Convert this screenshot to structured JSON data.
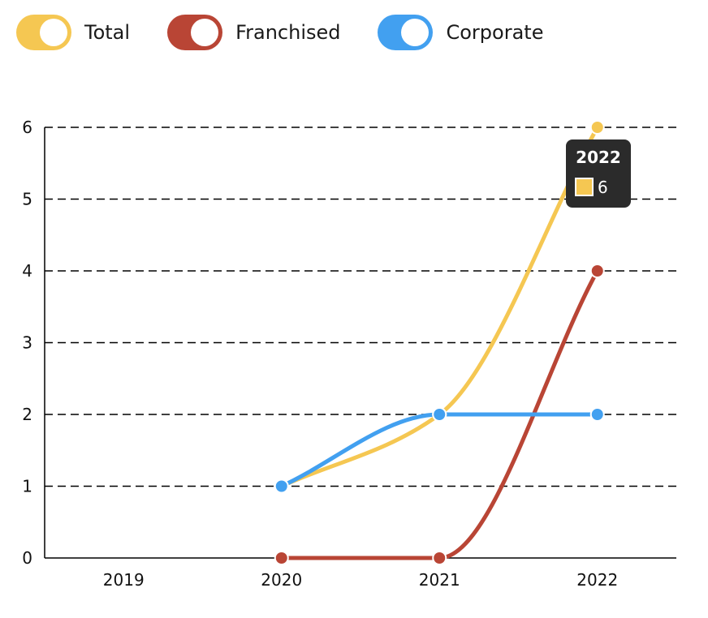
{
  "chart_data": {
    "type": "line",
    "categories": [
      "2019",
      "2020",
      "2021",
      "2022"
    ],
    "series": [
      {
        "name": "Total",
        "color": "#f5c752",
        "values": [
          null,
          1,
          2,
          6
        ]
      },
      {
        "name": "Franchised",
        "color": "#b94535",
        "values": [
          null,
          0,
          0,
          4
        ]
      },
      {
        "name": "Corporate",
        "color": "#42a0f0",
        "values": [
          null,
          1,
          2,
          2
        ]
      }
    ],
    "ylim": [
      0,
      6
    ],
    "yticks": [
      "0",
      "1",
      "2",
      "3",
      "4",
      "5",
      "6"
    ],
    "grid": "dashed horizontal",
    "legend": "top-left",
    "tooltip": {
      "title": "2022",
      "value": "6",
      "series": "Total"
    }
  }
}
